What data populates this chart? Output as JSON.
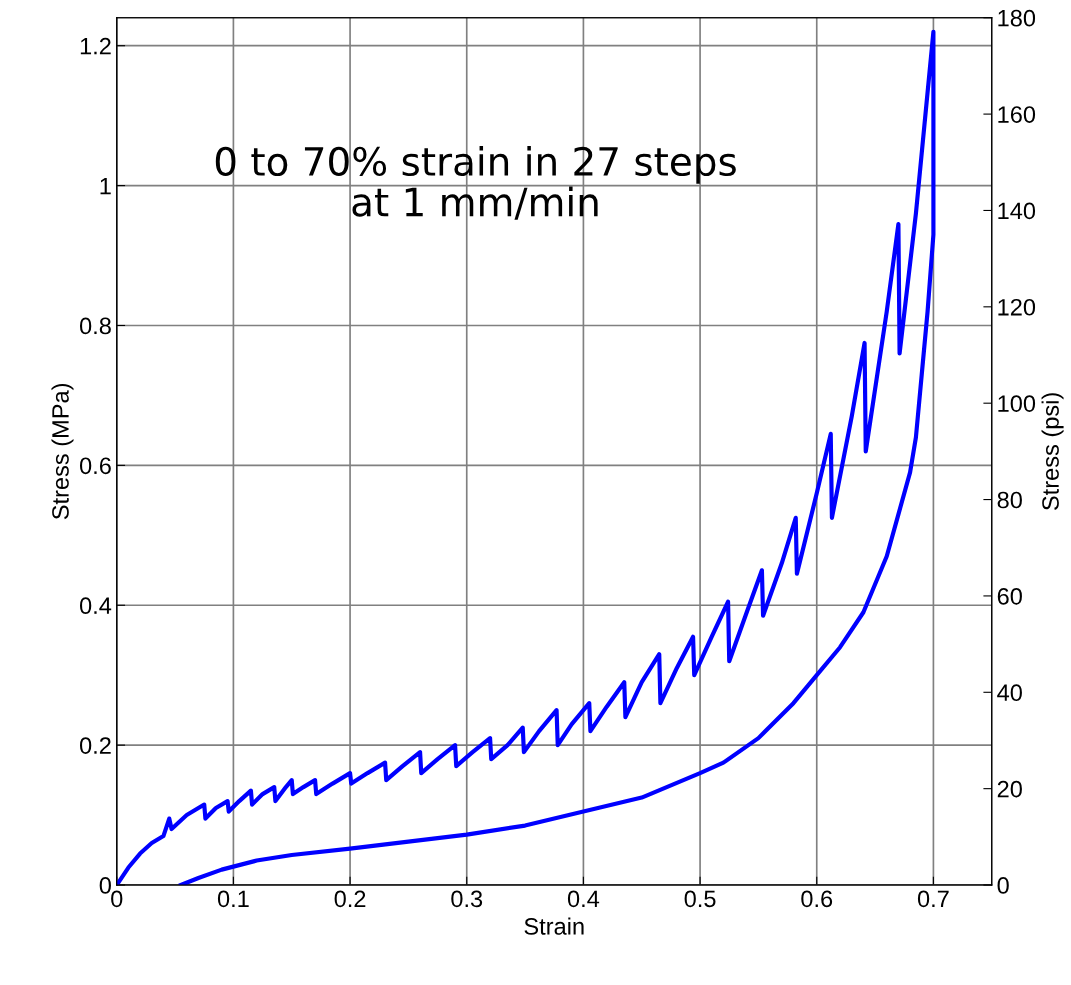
{
  "chart_data": {
    "type": "line",
    "xlabel": "Strain",
    "ylabel": "Stress (MPa)",
    "y2label": "Stress (psi)",
    "annotations": [
      "0 to 70% strain in 27 steps\nat 1 mm/min"
    ],
    "xlim": [
      0,
      0.75
    ],
    "xticks": [
      0,
      0.1,
      0.2,
      0.3,
      0.4,
      0.5,
      0.6,
      0.7
    ],
    "ylim": [
      0,
      1.24
    ],
    "yticks": [
      0,
      0.2,
      0.4,
      0.6,
      0.8,
      1,
      1.2
    ],
    "y2lim": [
      0,
      180
    ],
    "y2ticks": [
      0,
      20,
      40,
      60,
      80,
      100,
      120,
      140,
      160,
      180
    ],
    "grid": true,
    "line_style": "solid",
    "marker": "none",
    "series": [
      {
        "color": "#0000ff",
        "x": [
          0,
          0.01,
          0.02,
          0.03,
          0.04,
          0.045,
          0.047,
          0.06,
          0.075,
          0.076,
          0.085,
          0.095,
          0.096,
          0.105,
          0.115,
          0.116,
          0.125,
          0.135,
          0.136,
          0.145,
          0.15,
          0.151,
          0.16,
          0.17,
          0.171,
          0.185,
          0.2,
          0.201,
          0.215,
          0.23,
          0.231,
          0.245,
          0.26,
          0.261,
          0.275,
          0.29,
          0.291,
          0.305,
          0.32,
          0.321,
          0.335,
          0.348,
          0.349,
          0.362,
          0.377,
          0.378,
          0.39,
          0.405,
          0.406,
          0.42,
          0.435,
          0.436,
          0.45,
          0.465,
          0.466,
          0.48,
          0.494,
          0.495,
          0.51,
          0.524,
          0.525,
          0.54,
          0.553,
          0.554,
          0.57,
          0.582,
          0.583,
          0.6,
          0.612,
          0.613,
          0.63,
          0.641,
          0.642,
          0.66,
          0.67,
          0.671,
          0.685,
          0.7,
          0.7,
          0.695,
          0.69,
          0.685,
          0.68,
          0.67,
          0.66,
          0.65,
          0.64,
          0.62,
          0.6,
          0.58,
          0.55,
          0.52,
          0.5,
          0.45,
          0.4,
          0.35,
          0.3,
          0.25,
          0.2,
          0.15,
          0.12,
          0.09,
          0.07,
          0.055
        ],
        "values": [
          0,
          0.025,
          0.045,
          0.06,
          0.07,
          0.095,
          0.08,
          0.1,
          0.115,
          0.095,
          0.11,
          0.12,
          0.105,
          0.12,
          0.135,
          0.115,
          0.13,
          0.14,
          0.12,
          0.14,
          0.15,
          0.13,
          0.14,
          0.15,
          0.13,
          0.145,
          0.16,
          0.145,
          0.16,
          0.175,
          0.15,
          0.17,
          0.19,
          0.16,
          0.18,
          0.2,
          0.17,
          0.19,
          0.21,
          0.18,
          0.2,
          0.225,
          0.19,
          0.22,
          0.25,
          0.2,
          0.23,
          0.26,
          0.22,
          0.255,
          0.29,
          0.24,
          0.29,
          0.33,
          0.26,
          0.31,
          0.355,
          0.3,
          0.355,
          0.405,
          0.32,
          0.39,
          0.45,
          0.385,
          0.46,
          0.525,
          0.445,
          0.56,
          0.645,
          0.525,
          0.67,
          0.775,
          0.62,
          0.82,
          0.945,
          0.76,
          0.96,
          1.22,
          0.93,
          0.82,
          0.73,
          0.64,
          0.59,
          0.53,
          0.47,
          0.43,
          0.39,
          0.34,
          0.3,
          0.26,
          0.21,
          0.175,
          0.16,
          0.125,
          0.105,
          0.085,
          0.072,
          0.062,
          0.052,
          0.043,
          0.035,
          0.022,
          0.01,
          0
        ]
      }
    ]
  }
}
